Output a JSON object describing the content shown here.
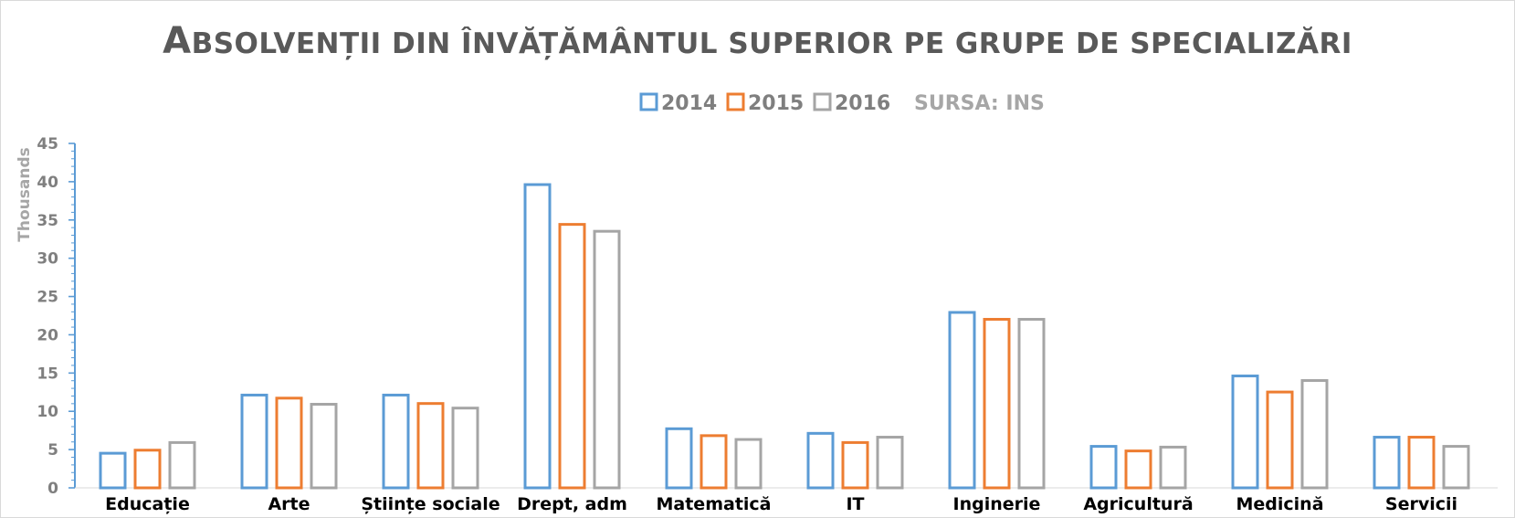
{
  "chart_data": {
    "type": "bar",
    "title": "Absolvenții din învățământul superior pe grupe de specializări",
    "ylabel": "Thousands",
    "xlabel": "",
    "ylim": [
      0,
      45
    ],
    "yticks": [
      "0",
      "5",
      "10",
      "15",
      "20",
      "25",
      "30",
      "35",
      "40",
      "45"
    ],
    "grid": false,
    "legend_placement": "top",
    "source": "SURSA: INS",
    "categories": [
      "Educație",
      "Arte",
      "Științe sociale",
      "Drept, adm",
      "Matematică",
      "IT",
      "Inginerie",
      "Agricultură",
      "Medicină",
      "Servicii"
    ],
    "series": [
      {
        "name": "2014",
        "color": "#5b9bd5",
        "values": [
          4.7,
          12.3,
          12.3,
          39.8,
          7.9,
          7.3,
          23.1,
          5.6,
          14.8,
          6.8
        ]
      },
      {
        "name": "2015",
        "color": "#ed7d31",
        "values": [
          5.1,
          11.9,
          11.2,
          34.6,
          7.0,
          6.1,
          22.2,
          5.0,
          12.7,
          6.8
        ]
      },
      {
        "name": "2016",
        "color": "#a5a5a5",
        "values": [
          6.1,
          11.1,
          10.6,
          33.7,
          6.5,
          6.8,
          22.2,
          5.5,
          14.2,
          5.6
        ]
      }
    ]
  }
}
